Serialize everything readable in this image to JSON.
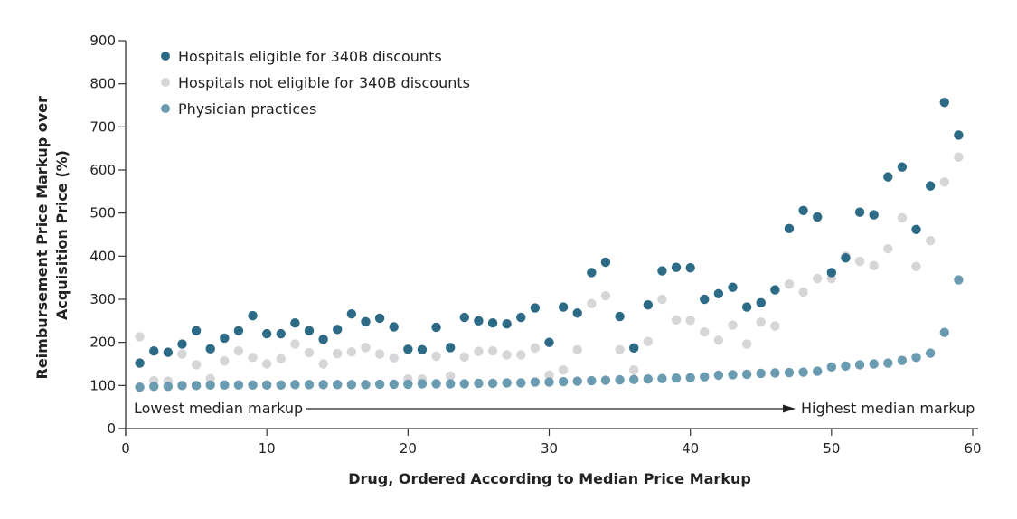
{
  "chart_data": {
    "type": "scatter",
    "title": "",
    "xlabel": "Drug, Ordered According to Median Price Markup",
    "ylabel": "Reimbursement Price Markup over Acquisition Price (%)",
    "ylabel_lines": [
      "Reimbursement Price Markup over",
      "Acquisition Price (%)"
    ],
    "xlim": [
      0,
      60
    ],
    "ylim": [
      0,
      900
    ],
    "x_ticks": [
      0,
      10,
      20,
      30,
      40,
      50,
      60
    ],
    "y_ticks": [
      0,
      100,
      200,
      300,
      400,
      500,
      600,
      700,
      800,
      900
    ],
    "grid": false,
    "legend_position": "top-left",
    "annotations": {
      "left": "Lowest median markup",
      "right": "Highest median markup"
    },
    "x": [
      1,
      2,
      3,
      4,
      5,
      6,
      7,
      8,
      9,
      10,
      11,
      12,
      13,
      14,
      15,
      16,
      17,
      18,
      19,
      20,
      21,
      22,
      23,
      24,
      25,
      26,
      27,
      28,
      29,
      30,
      31,
      32,
      33,
      34,
      35,
      36,
      37,
      38,
      39,
      40,
      41,
      42,
      43,
      44,
      45,
      46,
      47,
      48,
      49,
      50,
      51,
      52,
      53,
      54,
      55,
      56,
      57,
      58,
      59
    ],
    "series": [
      {
        "name": "Hospitals eligible for 340B discounts",
        "color": "#2d6a85",
        "values": [
          152,
          180,
          177,
          196,
          227,
          185,
          210,
          227,
          262,
          220,
          220,
          245,
          227,
          207,
          230,
          266,
          248,
          256,
          236,
          184,
          183,
          235,
          188,
          258,
          250,
          245,
          243,
          258,
          280,
          200,
          282,
          268,
          362,
          386,
          260,
          187,
          287,
          366,
          374,
          373,
          300,
          313,
          328,
          282,
          292,
          322,
          464,
          506,
          491,
          362,
          396,
          502,
          496,
          584,
          607,
          462,
          563,
          757,
          681
        ]
      },
      {
        "name": "Hospitals not eligible for 340B discounts",
        "color": "#d6d6d8",
        "values": [
          213,
          111,
          110,
          173,
          148,
          116,
          157,
          180,
          165,
          150,
          162,
          196,
          176,
          150,
          174,
          178,
          188,
          173,
          164,
          115,
          115,
          168,
          122,
          166,
          179,
          180,
          171,
          171,
          187,
          124,
          136,
          183,
          290,
          308,
          183,
          136,
          202,
          300,
          252,
          251,
          224,
          205,
          240,
          196,
          247,
          238,
          335,
          317,
          348,
          348,
          400,
          388,
          378,
          417,
          489,
          376,
          436,
          572,
          630
        ]
      },
      {
        "name": "Physician practices",
        "color": "#6b9bb0",
        "values": [
          96,
          98,
          98,
          100,
          100,
          101,
          101,
          101,
          101,
          101,
          101,
          102,
          102,
          102,
          102,
          102,
          102,
          103,
          103,
          103,
          104,
          104,
          104,
          104,
          105,
          105,
          106,
          106,
          108,
          108,
          109,
          110,
          111,
          112,
          113,
          114,
          115,
          116,
          117,
          118,
          120,
          124,
          125,
          126,
          128,
          129,
          130,
          131,
          133,
          143,
          145,
          148,
          150,
          152,
          158,
          165,
          175,
          223,
          345
        ]
      }
    ]
  }
}
